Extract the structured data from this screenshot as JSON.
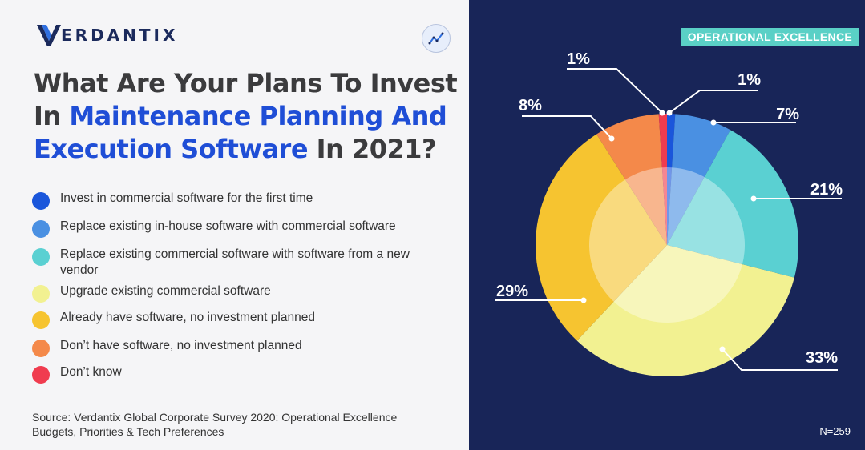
{
  "brand": {
    "name": "VERDANTIX",
    "rest": "ERDANTIX"
  },
  "title": {
    "line1": "What Are Your Plans To Invest",
    "line2_a": "In ",
    "line2_b": "Maintenance Planning And",
    "line3_a": "Execution Software",
    "line3_b": " In 2021?"
  },
  "tag": "OPERATIONAL EXCELLENCE",
  "sample": "N=259",
  "source": {
    "line1": "Source: Verdantix Global Corporate Survey 2020: Operational Excellence",
    "line2": "Budgets, Priorities & Tech Preferences"
  },
  "legend": [
    {
      "label": "Invest in commercial software for the first time",
      "color": "#1a56db"
    },
    {
      "label": "Replace existing in-house software with commercial software",
      "color": "#4a90e2"
    },
    {
      "label": "Replace existing commercial software with software from a new vendor",
      "color": "#5ad0d2"
    },
    {
      "label": "Upgrade existing commercial software",
      "color": "#f2f191"
    },
    {
      "label": "Already have software, no investment planned",
      "color": "#f6c430"
    },
    {
      "label": "Don’t have software, no investment planned",
      "color": "#f4894a"
    },
    {
      "label": "Don’t know",
      "color": "#f03c4f"
    }
  ],
  "chart_data": {
    "type": "pie",
    "categories": [
      "Invest in commercial software for the first time",
      "Replace existing in-house software with commercial software",
      "Replace existing commercial software with software from a new vendor",
      "Upgrade existing commercial software",
      "Already have software, no investment planned",
      "Don’t have software, no investment planned",
      "Don’t know"
    ],
    "values": [
      1,
      7,
      21,
      33,
      29,
      8,
      1
    ],
    "labels": [
      "1%",
      "7%",
      "21%",
      "33%",
      "29%",
      "8%",
      "1%"
    ],
    "colors": [
      "#1a56db",
      "#4a90e2",
      "#5ad0d2",
      "#f2f191",
      "#f6c430",
      "#f4894a",
      "#f03c4f"
    ],
    "start": "12 o'clock, clockwise"
  }
}
